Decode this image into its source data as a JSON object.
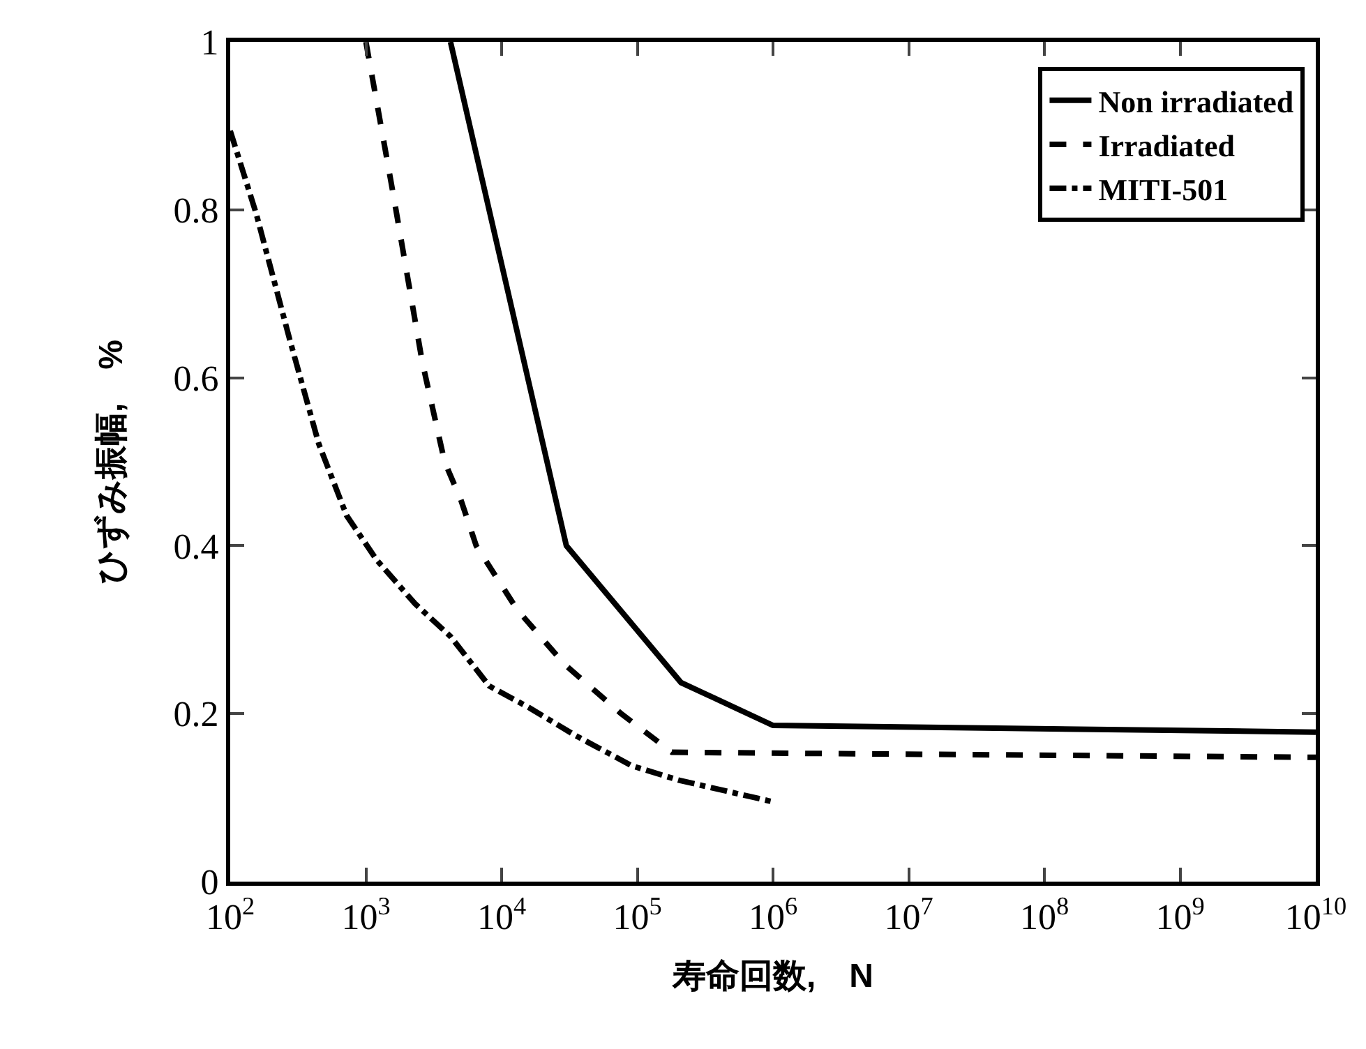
{
  "chart_data": {
    "type": "line",
    "xlabel": "寿命回数,　N",
    "ylabel": "ひずみ振幅,　%",
    "log": "x",
    "xlim": [
      100,
      10000000000
    ],
    "ylim": [
      0,
      1
    ],
    "xticks": [
      {
        "value": 100,
        "label": "10$^{2}$"
      },
      {
        "value": 1000,
        "label": "10$^{3}$"
      },
      {
        "value": 10000,
        "label": "10$^{4}$"
      },
      {
        "value": 100000,
        "label": "10$^{5}$"
      },
      {
        "value": 1000000,
        "label": "10$^{6}$"
      },
      {
        "value": 10000000,
        "label": "10$^{7}$"
      },
      {
        "value": 100000000,
        "label": "10$^{8}$"
      },
      {
        "value": 1000000000,
        "label": "10$^{9}$"
      },
      {
        "value": 10000000000,
        "label": "10$^{10}$"
      }
    ],
    "yticks": [
      0,
      0.2,
      0.4,
      0.6,
      0.8,
      1
    ],
    "grid": false,
    "legend": "top right",
    "marker": "none",
    "series": [
      {
        "name": "Non irradiated",
        "color": "#000000",
        "line_style": "solid",
        "x": [
          4200,
          30000,
          210000,
          1000000,
          10000000000
        ],
        "values": [
          1,
          0.4,
          0.237,
          0.186,
          0.178
        ]
      },
      {
        "name": "Irradiated",
        "color": "#000000",
        "line_style": "dashed",
        "x": [
          1000,
          1600,
          2600,
          3800,
          5000,
          6500,
          13000,
          29000,
          76000,
          180000,
          1000000,
          10000000000
        ],
        "values": [
          1,
          0.816,
          0.619,
          0.5,
          0.455,
          0.4,
          0.324,
          0.259,
          0.2,
          0.154,
          0.153,
          0.148
        ]
      },
      {
        "name": "MITI-501",
        "color": "#000000",
        "line_style": "dashdot",
        "x": [
          100,
          155,
          275,
          450,
          720,
          1200,
          2300,
          4200,
          8100,
          16000,
          35000,
          91000,
          200000,
          1000000
        ],
        "values": [
          0.894,
          0.796,
          0.645,
          0.521,
          0.436,
          0.383,
          0.331,
          0.292,
          0.233,
          0.207,
          0.174,
          0.138,
          0.121,
          0.095
        ]
      }
    ]
  }
}
